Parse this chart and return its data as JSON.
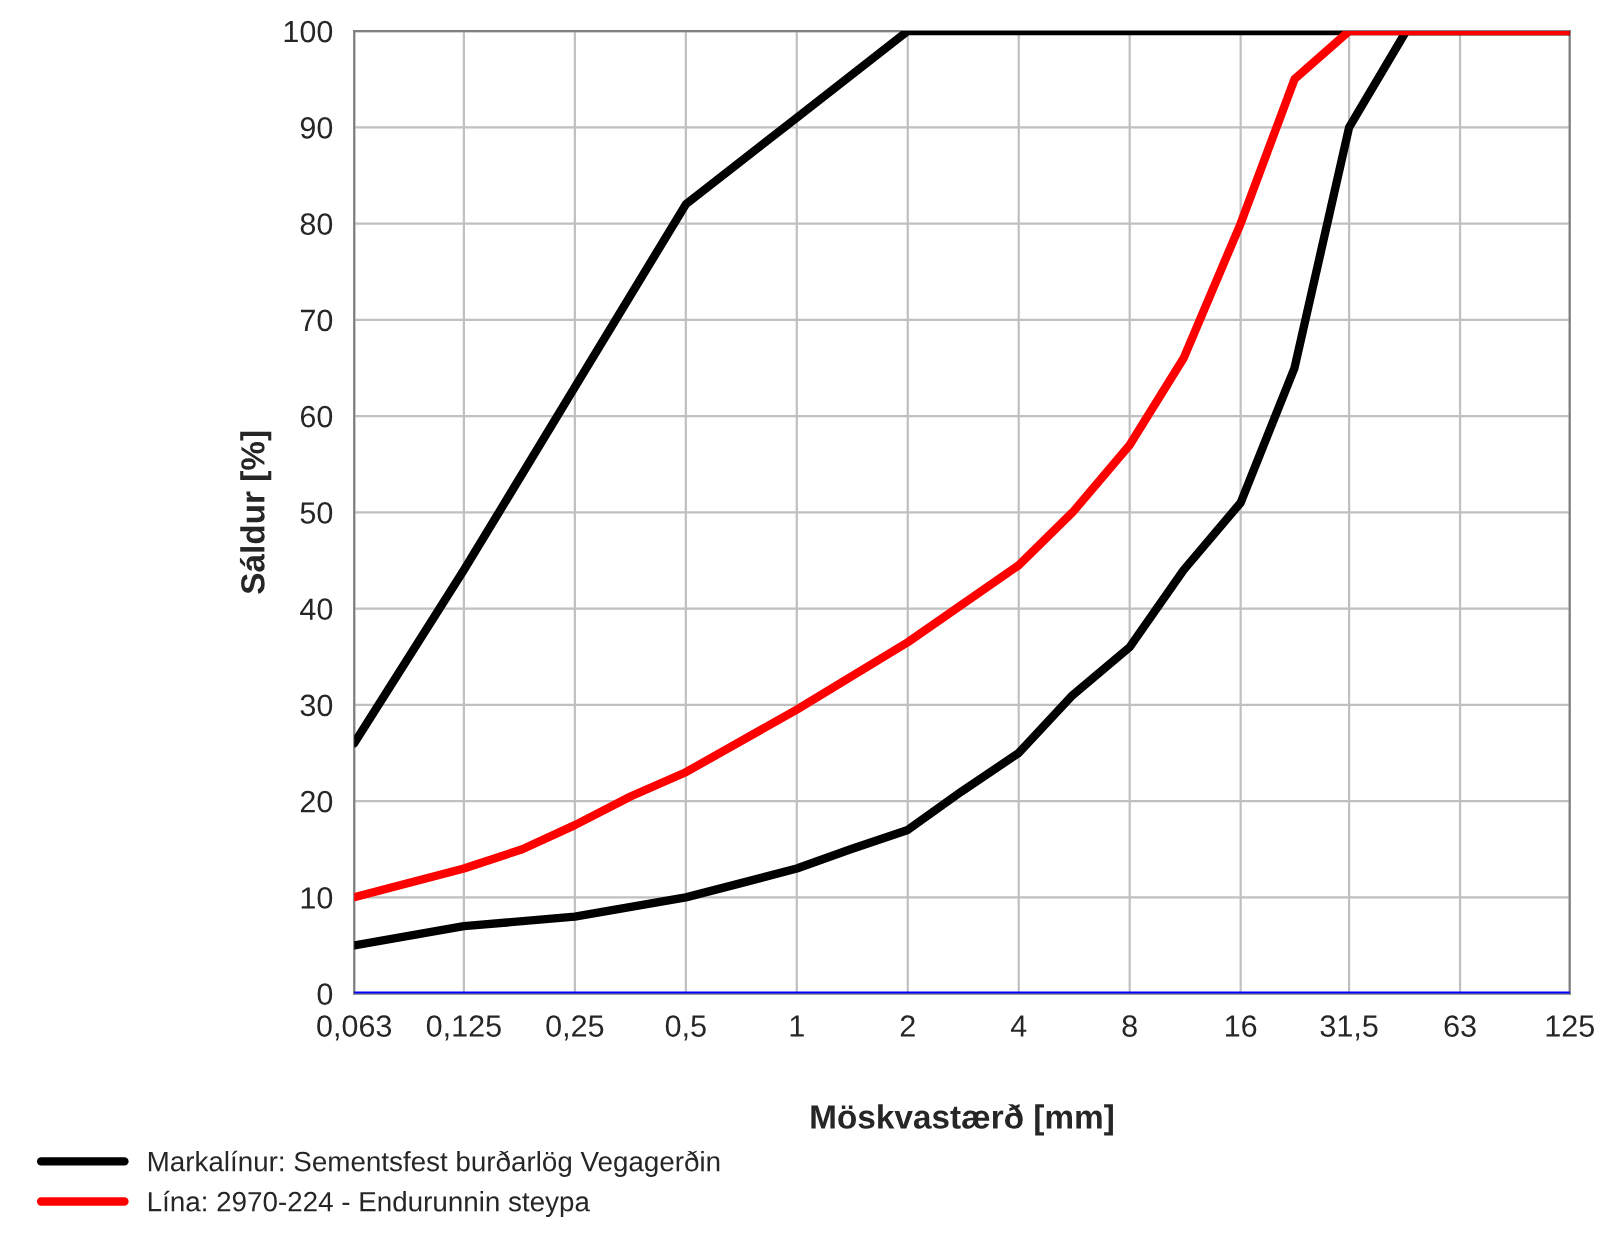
{
  "chart_data": {
    "type": "line",
    "xlabel": "Möskvastærð [mm]",
    "ylabel": "Sáldur [%]",
    "log": "x",
    "xlim": [
      0.063,
      125
    ],
    "ylim": [
      0,
      100
    ],
    "xticks": [
      {
        "value": 0.063,
        "label": "0,063"
      },
      {
        "value": 0.125,
        "label": "0,125"
      },
      {
        "value": 0.25,
        "label": "0,25"
      },
      {
        "value": 0.5,
        "label": "0,5"
      },
      1,
      2,
      4,
      8,
      16,
      {
        "value": 31.5,
        "label": "31,5"
      },
      63,
      125
    ],
    "yticks": [
      0,
      10,
      20,
      30,
      40,
      50,
      60,
      70,
      80,
      90,
      100
    ],
    "grid": true,
    "legend": "bottom",
    "marker": "none",
    "line_style": "solid",
    "ref_lines": [
      {
        "axis": "y",
        "value": 0,
        "color": "#0000ff"
      }
    ],
    "series": [
      {
        "name": "Markalínur: Sementsfest burðarlög Vegagerðin",
        "color": "#000000",
        "x": [
          0.063,
          0.125,
          0.25,
          0.355,
          0.5,
          0.71,
          1,
          1.4,
          2,
          2.8,
          4,
          5.6,
          8,
          11.2,
          16,
          22.4,
          31.5,
          45,
          125
        ],
        "values": [
          5,
          7,
          8,
          9,
          10,
          11.5,
          13,
          15,
          17,
          21,
          25,
          31,
          36,
          44,
          51,
          65,
          90,
          100,
          100
        ]
      },
      {
        "color": "#000000",
        "x": [
          0.063,
          0.125,
          0.25,
          0.5,
          1,
          2,
          125
        ],
        "values": [
          26,
          44,
          63,
          82,
          91,
          100,
          100
        ]
      },
      {
        "name": "Lína: 2970-224 - Endurunnin steypa",
        "color": "#ff0000",
        "x": [
          0.063,
          0.125,
          0.18,
          0.25,
          0.355,
          0.5,
          1,
          2,
          4,
          5.6,
          8,
          11.2,
          16,
          22.4,
          31.5,
          125
        ],
        "values": [
          10,
          13,
          15,
          17.5,
          20.5,
          23,
          29.5,
          36.5,
          44.5,
          50,
          57,
          66,
          80,
          95,
          100,
          100
        ]
      }
    ]
  }
}
